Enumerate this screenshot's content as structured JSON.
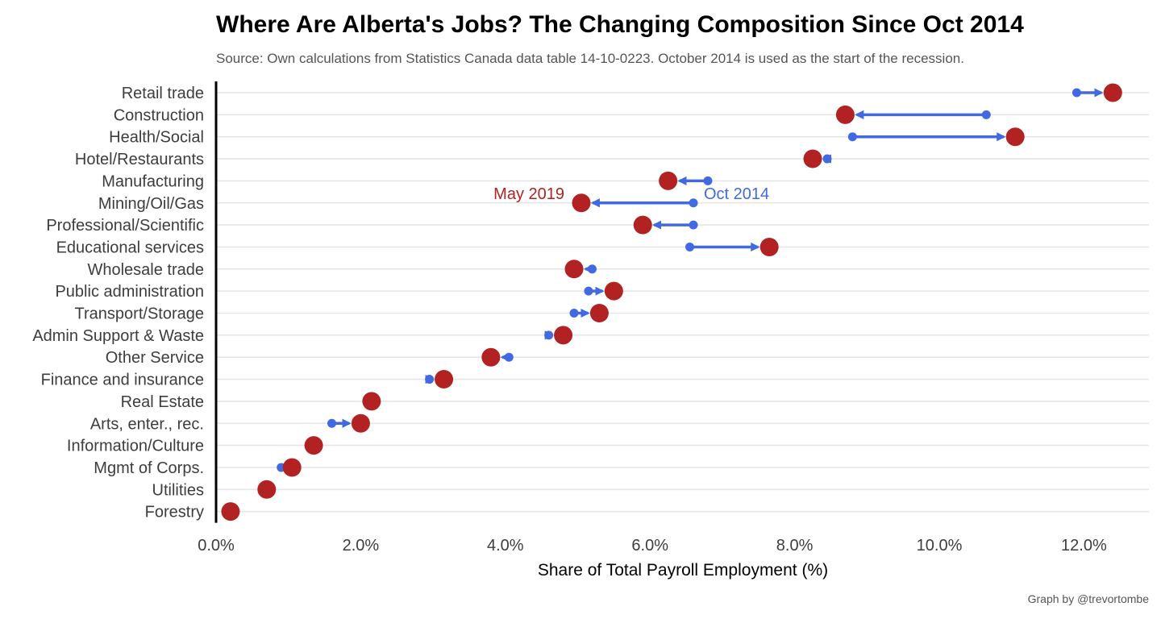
{
  "chart_data": {
    "type": "dumbbell",
    "title": "Where Are Alberta's Jobs? The Changing Composition Since Oct 2014",
    "subtitle": "Source: Own calculations from Statistics Canada data table 14-10-0223. October 2014 is used as the start of the recession.",
    "xlabel": "Share of Total Payroll Employment (%)",
    "ylabel": "",
    "caption": "Graph by @trevortombe",
    "xlim": [
      0,
      12.5
    ],
    "x_ticks": [
      0,
      2,
      4,
      6,
      8,
      10,
      12
    ],
    "x_tick_labels": [
      "0.0%",
      "2.0%",
      "4.0%",
      "6.0%",
      "8.0%",
      "10.0%",
      "12.0%"
    ],
    "grid": "horizontal",
    "colors": {
      "start": "#4169e1",
      "end": "#b22222",
      "axis": "#000000"
    },
    "annotations": [
      {
        "text": "May 2019",
        "color": "#b22222"
      },
      {
        "text": "Oct 2014",
        "color": "#4169e1"
      }
    ],
    "categories": [
      "Retail trade",
      "Construction",
      "Health/Social",
      "Hotel/Restaurants",
      "Manufacturing",
      "Mining/Oil/Gas",
      "Professional/Scientific",
      "Educational services",
      "Wholesale trade",
      "Public administration",
      "Transport/Storage",
      "Admin Support & Waste",
      "Other Service",
      "Finance and insurance",
      "Real Estate",
      "Arts, enter., rec.",
      "Information/Culture",
      "Mgmt of Corps.",
      "Utilities",
      "Forestry"
    ],
    "series": [
      {
        "name": "Oct 2014",
        "values": [
          11.9,
          10.65,
          8.8,
          8.45,
          6.8,
          6.6,
          6.6,
          6.55,
          5.2,
          5.15,
          4.95,
          4.6,
          4.05,
          2.95,
          2.15,
          1.6,
          1.35,
          0.9,
          0.65,
          0.2
        ]
      },
      {
        "name": "May 2019",
        "values": [
          12.4,
          8.7,
          11.05,
          8.25,
          6.25,
          5.05,
          5.9,
          7.65,
          4.95,
          5.5,
          5.3,
          4.8,
          3.8,
          3.15,
          2.15,
          2.0,
          1.35,
          1.05,
          0.7,
          0.2
        ]
      }
    ]
  }
}
